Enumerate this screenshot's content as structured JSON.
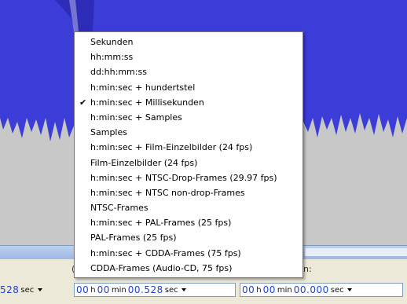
{
  "menu": {
    "items": [
      {
        "label": "Sekunden",
        "checked": false
      },
      {
        "label": "hh:mm:ss",
        "checked": false
      },
      {
        "label": "dd:hh:mm:ss",
        "checked": false
      },
      {
        "label": "h:min:sec + hundertstel",
        "checked": false
      },
      {
        "label": "h:min:sec + Millisekunden",
        "checked": true
      },
      {
        "label": "h:min:sec + Samples",
        "checked": false
      },
      {
        "label": "Samples",
        "checked": false
      },
      {
        "label": "h:min:sec + Film-Einzelbilder (24 fps)",
        "checked": false
      },
      {
        "label": "Film-Einzelbilder (24 fps)",
        "checked": false
      },
      {
        "label": "h:min:sec + NTSC-Drop-Frames (29.97 fps)",
        "checked": false
      },
      {
        "label": "h:min:sec + NTSC non-drop-Frames",
        "checked": false
      },
      {
        "label": "NTSC-Frames",
        "checked": false
      },
      {
        "label": "h:min:sec + PAL-Frames (25 fps)",
        "checked": false
      },
      {
        "label": "PAL-Frames (25 fps)",
        "checked": false
      },
      {
        "label": "h:min:sec + CDDA-Frames (75 fps)",
        "checked": false
      },
      {
        "label": "CDDA-Frames (Audio-CD, 75 fps)",
        "checked": false
      }
    ],
    "check_glyph": "✔"
  },
  "selection_toolbar": {
    "left_partial_label": "(",
    "right_partial_label": "n:",
    "field1": {
      "digits": "528",
      "unit": "sec"
    },
    "field2": {
      "h": "00",
      "h_unit": "h",
      "min": "00",
      "min_unit": "min",
      "sec": "00.528",
      "sec_unit": "sec"
    },
    "field3": {
      "h": "00",
      "h_unit": "h",
      "min": "00",
      "min_unit": "min",
      "sec": "00.000",
      "sec_unit": "sec"
    }
  },
  "colors": {
    "waveform": "#3c3cd8",
    "waveform_light": "#6a6ae6",
    "track_background": "#c8c8c8",
    "menu_background": "#ffffff",
    "digit_blue": "#2244cc"
  },
  "icons": {
    "dropdown": "chevron-down-icon",
    "check": "check-icon"
  }
}
